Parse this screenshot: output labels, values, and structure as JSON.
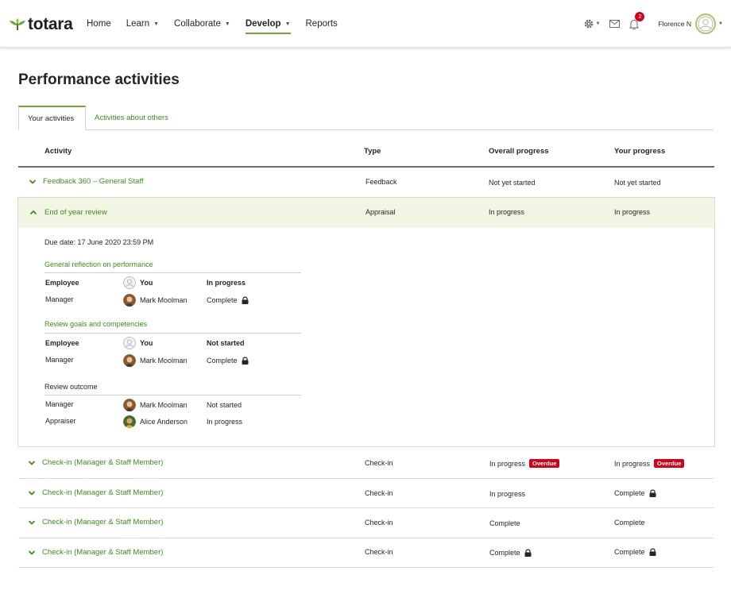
{
  "header": {
    "logo_text": "totara",
    "nav": [
      {
        "label": "Home",
        "caret": false,
        "active": false
      },
      {
        "label": "Learn",
        "caret": true,
        "active": false
      },
      {
        "label": "Collaborate",
        "caret": true,
        "active": false
      },
      {
        "label": "Develop",
        "caret": true,
        "active": true
      },
      {
        "label": "Reports",
        "caret": false,
        "active": false
      }
    ],
    "notification_count": "2",
    "user_name": "Florence N",
    "icons": [
      "gear-icon",
      "mail-icon",
      "bell-icon",
      "avatar-icon"
    ]
  },
  "page": {
    "title": "Performance activities",
    "tabs": [
      "Your activities",
      "Activities about others"
    ]
  },
  "table": {
    "columns": [
      "Activity",
      "Type",
      "Overall progress",
      "Your progress"
    ],
    "rows": [
      {
        "activity": "Feedback 360 – General Staff",
        "type": "Feedback",
        "overall": "Not yet started",
        "yours": "Not yet started"
      },
      {
        "activity": "End of year review",
        "type": "Appraisal",
        "overall": "In progress",
        "yours": "In progress"
      },
      {
        "activity": "Check-in (Manager & Staff Member)",
        "type": "Check-in",
        "overall": "In progress",
        "yours": "In progress",
        "overall_badge": "Overdue",
        "yours_badge": "Overdue"
      },
      {
        "activity": "Check-in (Manager & Staff Member)",
        "type": "Check-in",
        "overall": "In progress",
        "yours": "Complete"
      },
      {
        "activity": "Check-in (Manager & Staff Member)",
        "type": "Check-in",
        "overall": "Complete",
        "yours": "Complete"
      },
      {
        "activity": "Check-in (Manager & Staff Member)",
        "type": "Check-in",
        "overall": "Complete",
        "yours": "Complete"
      }
    ]
  },
  "details": {
    "due_date": "Due date: 17 June 2020 23:59 PM",
    "sections": [
      {
        "title": "General reflection on performance",
        "link": true,
        "participants": [
          {
            "role": "Employee",
            "name": "You",
            "status": "In progress",
            "bold": true
          },
          {
            "role": "Manager",
            "name": "Mark Moolman",
            "status": "Complete",
            "bold": false
          }
        ]
      },
      {
        "title": "Review goals and competencies",
        "link": true,
        "participants": [
          {
            "role": "Employee",
            "name": "You",
            "status": "Not started",
            "bold": true
          },
          {
            "role": "Manager",
            "name": "Mark Moolman",
            "status": "Complete",
            "bold": false
          }
        ]
      },
      {
        "title": "Review outcome",
        "link": false,
        "participants": [
          {
            "role": "Manager",
            "name": "Mark Moolman",
            "status": "Not started",
            "bold": false
          },
          {
            "role": "Appraiser",
            "name": "Alice Anderson",
            "status": "In progress",
            "bold": false
          }
        ]
      }
    ]
  },
  "colors": {
    "brand_green": "#69a834",
    "link_green": "#3f8a1f",
    "overdue_red": "#d0021b",
    "expanded_bg": "#f0f5e4"
  }
}
